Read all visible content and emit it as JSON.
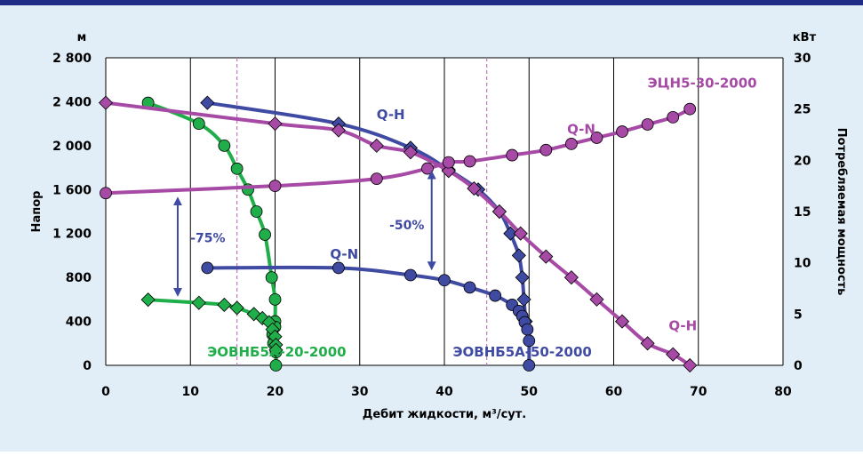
{
  "colors": {
    "background": "#e1eef8",
    "top_bar": "#1f2b85",
    "plot_bg": "#ffffff",
    "green": "#1fae4a",
    "navy": "#3f4aa3",
    "violet": "#a64aa6",
    "ref_line": "#c07ac0",
    "arrow": "#3f4aa3",
    "text": "#000000"
  },
  "chart_data": {
    "type": "line",
    "xlabel": "Дебит жидкости, м³/сут.",
    "ylabel_left": "Напор",
    "ylabel_right": "Потребляемая мощность",
    "unit_left": "м",
    "unit_right": "кВт",
    "xlim": [
      0,
      80
    ],
    "ylim_left": [
      0,
      2800
    ],
    "ylim_right": [
      0,
      30
    ],
    "x_ticks": [
      "0",
      "10",
      "20",
      "30",
      "40",
      "50",
      "60",
      "70",
      "80"
    ],
    "y_ticks_left": [
      "0",
      "400",
      "800",
      "1 200",
      "1 600",
      "2 000",
      "2 400",
      "2 800"
    ],
    "y_ticks_right": [
      "0",
      "5",
      "10",
      "15",
      "20",
      "25",
      "30"
    ],
    "ref_lines_x": [
      15.5,
      45
    ],
    "grid": "vertical",
    "series": [
      {
        "id": "e20_qh",
        "axis": "left",
        "color": "green",
        "marker": "circle",
        "x": [
          5,
          11,
          14,
          15.5,
          16.8,
          17.8,
          18.8,
          19.6,
          20,
          20,
          20,
          19.7,
          19.8,
          20.1,
          20.1
        ],
        "y": [
          2390,
          2200,
          2000,
          1790,
          1600,
          1400,
          1190,
          800,
          600,
          400,
          350,
          280,
          200,
          120,
          0
        ]
      },
      {
        "id": "e20_qn",
        "axis": "right",
        "color": "green",
        "marker": "diamond",
        "x": [
          5,
          11,
          14,
          15.5,
          17.5,
          18.5,
          19.3,
          19.7,
          20,
          20.1,
          20.1
        ],
        "y": [
          6.4,
          6.1,
          5.9,
          5.6,
          5.0,
          4.6,
          4.2,
          3.5,
          2.8,
          2.0,
          1.5
        ]
      },
      {
        "id": "e50_qh",
        "axis": "left",
        "color": "navy",
        "marker": "diamond",
        "x": [
          12,
          27.5,
          36,
          40.5,
          44,
          46.5,
          47.8,
          48.8,
          49.2,
          49.4,
          49.6
        ],
        "y": [
          2390,
          2200,
          1980,
          1780,
          1600,
          1400,
          1200,
          1000,
          800,
          600,
          400
        ]
      },
      {
        "id": "e50_qn",
        "axis": "right",
        "color": "navy",
        "marker": "circle",
        "x": [
          12,
          27.5,
          36,
          40,
          43,
          46,
          48,
          48.8,
          49.2,
          49.5,
          49.8,
          50,
          50
        ],
        "y": [
          9.5,
          9.5,
          8.8,
          8.3,
          7.6,
          6.8,
          5.9,
          5.3,
          4.8,
          4.2,
          3.5,
          2.4,
          0
        ]
      },
      {
        "id": "ecn_qh",
        "axis": "left",
        "color": "violet",
        "marker": "diamond",
        "x": [
          0,
          20,
          27.5,
          32,
          36,
          40.5,
          43.5,
          46.5,
          49,
          52,
          55,
          58,
          61,
          64,
          67,
          69
        ],
        "y": [
          2390,
          2200,
          2140,
          2000,
          1940,
          1770,
          1610,
          1400,
          1200,
          990,
          800,
          600,
          400,
          200,
          100,
          0
        ]
      },
      {
        "id": "ecn_qn",
        "axis": "right",
        "color": "violet",
        "marker": "circle",
        "x": [
          0,
          20,
          32,
          38,
          40.5,
          43,
          48,
          52,
          55,
          58,
          61,
          64,
          67,
          69
        ],
        "y": [
          16.8,
          17.5,
          18.2,
          19.2,
          19.8,
          19.9,
          20.5,
          21.0,
          21.6,
          22.2,
          22.8,
          23.5,
          24.2,
          25.0
        ]
      }
    ],
    "series_labels": [
      {
        "text": "ЭОВНБ5А-20-2000",
        "color": "green",
        "x": 12,
        "y_left": 80
      },
      {
        "text": "ЭОВНБ5А-50-2000",
        "color": "navy",
        "x": 41,
        "y_left": 80
      },
      {
        "text": "ЭЦН5-30-2000",
        "color": "violet",
        "x": 64,
        "y_left": 2530
      },
      {
        "text": "Q-H",
        "color": "navy",
        "x": 32,
        "y_left": 2240
      },
      {
        "text": "Q-N",
        "color": "navy",
        "x": 26.5,
        "y_left": 970
      },
      {
        "text": "Q-N",
        "color": "violet",
        "x": 54.5,
        "y_left": 2110
      },
      {
        "text": "Q-H",
        "color": "violet",
        "x": 66.5,
        "y_left": 320
      }
    ],
    "annotations": [
      {
        "text": "-75%",
        "x_arrow": 8.5,
        "y_top": 1560,
        "y_bottom": 600,
        "text_x": 10,
        "text_y": 1120
      },
      {
        "text": "-50%",
        "x_arrow": 38.5,
        "y_top": 1800,
        "y_bottom": 840,
        "text_x": 33.5,
        "text_y": 1240
      }
    ]
  }
}
